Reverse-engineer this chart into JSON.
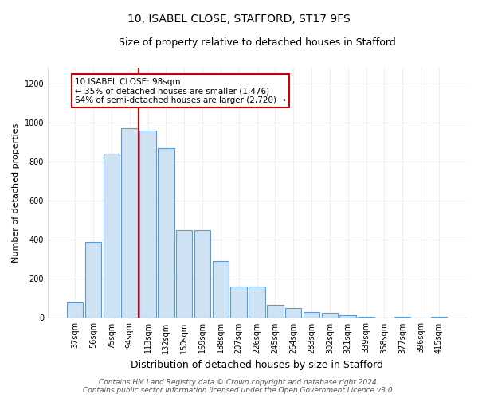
{
  "title": "10, ISABEL CLOSE, STAFFORD, ST17 9FS",
  "subtitle": "Size of property relative to detached houses in Stafford",
  "xlabel": "Distribution of detached houses by size in Stafford",
  "ylabel": "Number of detached properties",
  "categories": [
    "37sqm",
    "56sqm",
    "75sqm",
    "94sqm",
    "113sqm",
    "132sqm",
    "150sqm",
    "169sqm",
    "188sqm",
    "207sqm",
    "226sqm",
    "245sqm",
    "264sqm",
    "283sqm",
    "302sqm",
    "321sqm",
    "339sqm",
    "358sqm",
    "377sqm",
    "396sqm",
    "415sqm"
  ],
  "values": [
    80,
    390,
    840,
    970,
    960,
    870,
    450,
    450,
    290,
    160,
    160,
    65,
    50,
    30,
    25,
    15,
    5,
    0,
    5,
    0,
    5
  ],
  "bar_color": "#cfe2f3",
  "bar_edge_color": "#5b9bd5",
  "red_line_x": 3.5,
  "annotation_line1": "10 ISABEL CLOSE: 98sqm",
  "annotation_line2": "← 35% of detached houses are smaller (1,476)",
  "annotation_line3": "64% of semi-detached houses are larger (2,720) →",
  "annotation_box_color": "#ffffff",
  "annotation_box_edge": "#cc0000",
  "red_line_color": "#cc0000",
  "ylim": [
    0,
    1280
  ],
  "yticks": [
    0,
    200,
    400,
    600,
    800,
    1000,
    1200
  ],
  "footer1": "Contains HM Land Registry data © Crown copyright and database right 2024.",
  "footer2": "Contains public sector information licensed under the Open Government Licence v3.0.",
  "bg_color": "#ffffff",
  "plot_bg_color": "#ffffff",
  "grid_color": "#e8e8e8",
  "title_fontsize": 10,
  "subtitle_fontsize": 9,
  "xlabel_fontsize": 9,
  "ylabel_fontsize": 8,
  "tick_fontsize": 7,
  "annotation_fontsize": 7.5,
  "footer_fontsize": 6.5
}
